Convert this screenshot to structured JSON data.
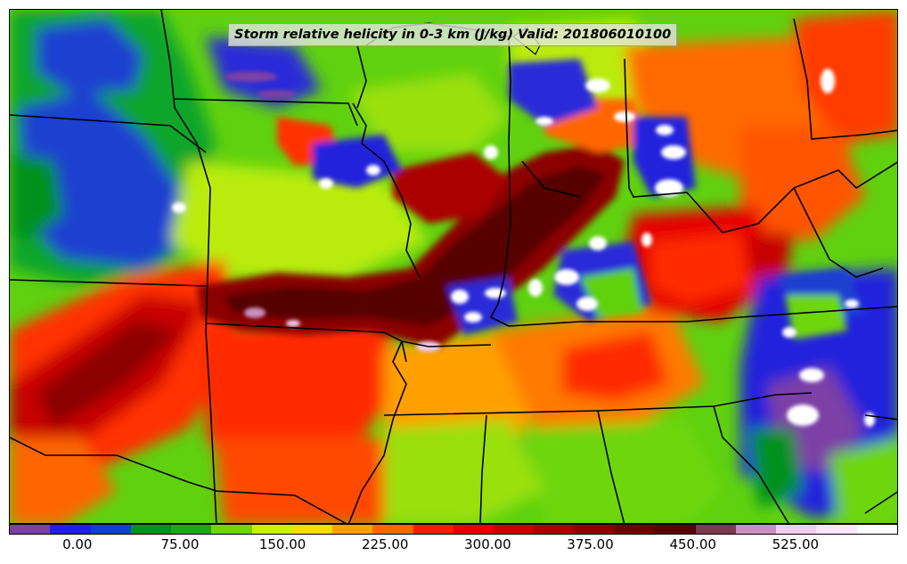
{
  "title": "Storm relative helicity in 0-3 km (J/kg) Valid: 201806010100",
  "colorbar": {
    "colors": [
      "#7b3fa6",
      "#2020e0",
      "#0a45c8",
      "#06911e",
      "#1ea51e",
      "#6ed60e",
      "#c8f00a",
      "#fadc00",
      "#ffa000",
      "#ff6600",
      "#ff1a00",
      "#e60000",
      "#c80000",
      "#aa0000",
      "#8c0000",
      "#6e0000",
      "#560000",
      "#7c3a4e",
      "#c890c0",
      "#f2cdf0",
      "#fbe6fb",
      "#ffffff"
    ],
    "ticks": [
      {
        "label": "0.00",
        "value": 0
      },
      {
        "label": "75.00",
        "value": 75
      },
      {
        "label": "150.00",
        "value": 150
      },
      {
        "label": "225.00",
        "value": 225
      },
      {
        "label": "300.00",
        "value": 300
      },
      {
        "label": "375.00",
        "value": 375
      },
      {
        "label": "450.00",
        "value": 450
      },
      {
        "label": "525.00",
        "value": 525
      }
    ],
    "min": -50,
    "max": 600
  }
}
